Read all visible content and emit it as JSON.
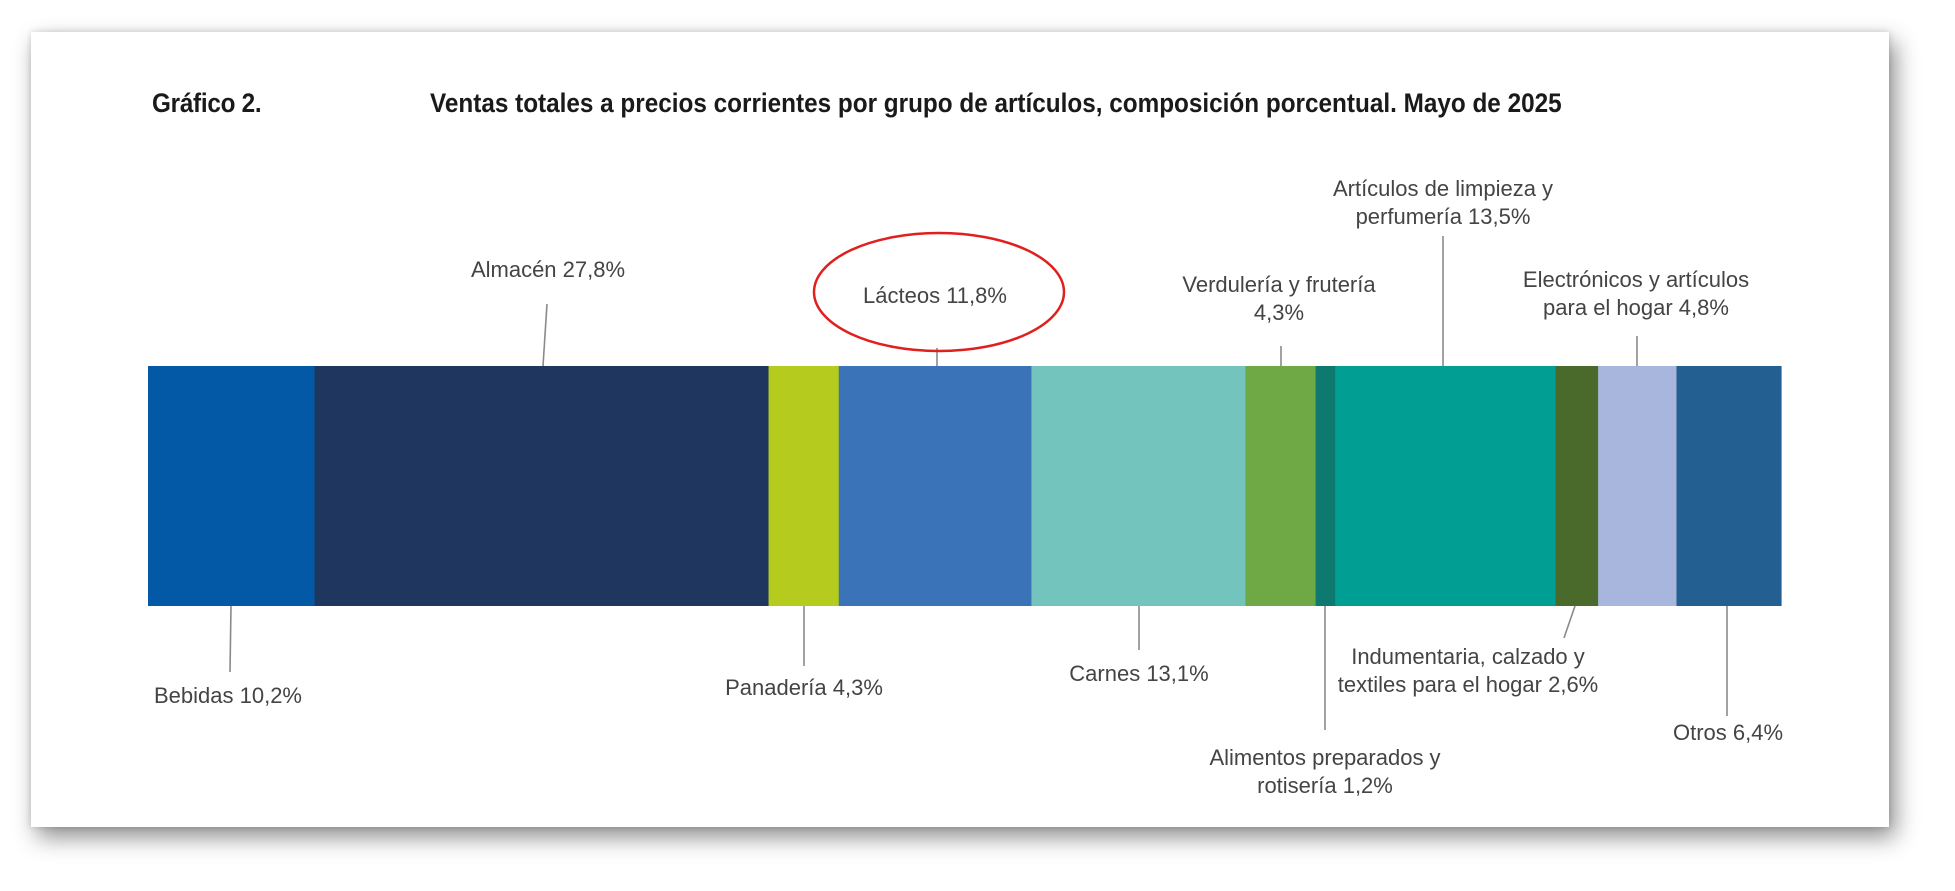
{
  "figure_label": "Gráfico 2.",
  "title": "Ventas totales a precios corrientes por grupo de artículos, composición porcentual. Mayo de 2025",
  "chart_data": {
    "type": "bar",
    "subtype": "100% stacked single bar",
    "unit": "%",
    "total": 100,
    "categories": [
      "Bebidas",
      "Almacén",
      "Panadería",
      "Lácteos",
      "Carnes",
      "Verdulería y frutería",
      "Alimentos preparados y rotisería",
      "Artículos de limpieza y perfumería",
      "Indumentaria, calzado y textiles para el hogar",
      "Electrónicos y artículos para el hogar",
      "Otros"
    ],
    "values": [
      10.2,
      27.8,
      4.3,
      11.8,
      13.1,
      4.3,
      1.2,
      13.5,
      2.6,
      4.8,
      6.4
    ],
    "colors": [
      "#0459a6",
      "#1f365e",
      "#b5cc1f",
      "#3a73b7",
      "#72c4bd",
      "#6fa946",
      "#0e7a6f",
      "#019e93",
      "#4a6a2b",
      "#a8b6dd",
      "#245f92"
    ],
    "labels": [
      {
        "lines": [
          "Bebidas 10,2%"
        ],
        "side": "below"
      },
      {
        "lines": [
          "Almacén 27,8%"
        ],
        "side": "above"
      },
      {
        "lines": [
          "Panadería 4,3%"
        ],
        "side": "below"
      },
      {
        "lines": [
          "Lácteos 11,8%"
        ],
        "side": "above",
        "highlighted": true
      },
      {
        "lines": [
          "Carnes 13,1%"
        ],
        "side": "below"
      },
      {
        "lines": [
          "Verdulería y frutería",
          "4,3%"
        ],
        "side": "above"
      },
      {
        "lines": [
          "Alimentos preparados y",
          "rotisería 1,2%"
        ],
        "side": "below"
      },
      {
        "lines": [
          "Artículos de limpieza y",
          "perfumería 13,5%"
        ],
        "side": "above"
      },
      {
        "lines": [
          "Indumentaria, calzado y",
          "textiles para el hogar 2,6%"
        ],
        "side": "below"
      },
      {
        "lines": [
          "Electrónicos y artículos",
          "para el hogar 4,8%"
        ],
        "side": "above"
      },
      {
        "lines": [
          "Otros 6,4%"
        ],
        "side": "below"
      }
    ],
    "highlight_color": "#e0201e"
  }
}
